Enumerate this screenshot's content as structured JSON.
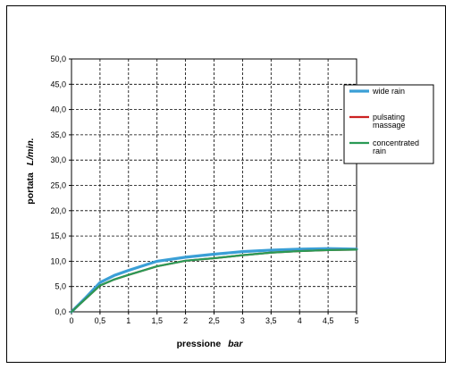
{
  "chart_data": {
    "type": "line",
    "xlabel": {
      "main": "pressione",
      "unit": "bar"
    },
    "ylabel": {
      "main": "portata",
      "unit": "L/min."
    },
    "xlim": [
      0,
      5
    ],
    "ylim": [
      0,
      50
    ],
    "x_ticks": [
      "0",
      "0,5",
      "1",
      "1,5",
      "2",
      "2,5",
      "3",
      "3,5",
      "4",
      "4,5",
      "5"
    ],
    "y_ticks": [
      "0,0",
      "5,0",
      "10,0",
      "15,0",
      "20,0",
      "25,0",
      "30,0",
      "35,0",
      "40,0",
      "45,0",
      "50,0"
    ],
    "grid": true,
    "legend_position": "right",
    "series": [
      {
        "name": "wide rain",
        "color": "#3a9fd6",
        "x": [
          0,
          0.25,
          0.5,
          0.75,
          1,
          1.5,
          2,
          2.5,
          3,
          3.5,
          4,
          4.5,
          5
        ],
        "values": [
          0,
          2.8,
          5.8,
          7.2,
          8.2,
          10.0,
          10.8,
          11.4,
          11.9,
          12.2,
          12.4,
          12.5,
          12.4
        ]
      },
      {
        "name": "pulsating\nmassage",
        "color": "#cc2222",
        "x": [
          0,
          0.25,
          0.5,
          0.75,
          1,
          1.5,
          2,
          2.5,
          3,
          3.5,
          4,
          4.5,
          5
        ],
        "values": [
          0,
          2.6,
          5.2,
          6.4,
          7.3,
          9.0,
          10.1,
          10.6,
          11.2,
          11.7,
          12.0,
          12.2,
          12.3
        ]
      },
      {
        "name": "concentrated\nrain",
        "color": "#2a9a55",
        "x": [
          0,
          0.25,
          0.5,
          0.75,
          1,
          1.5,
          2,
          2.5,
          3,
          3.5,
          4,
          4.5,
          5
        ],
        "values": [
          0,
          2.6,
          5.2,
          6.4,
          7.3,
          9.0,
          10.1,
          10.6,
          11.2,
          11.7,
          12.0,
          12.2,
          12.3
        ]
      }
    ]
  }
}
